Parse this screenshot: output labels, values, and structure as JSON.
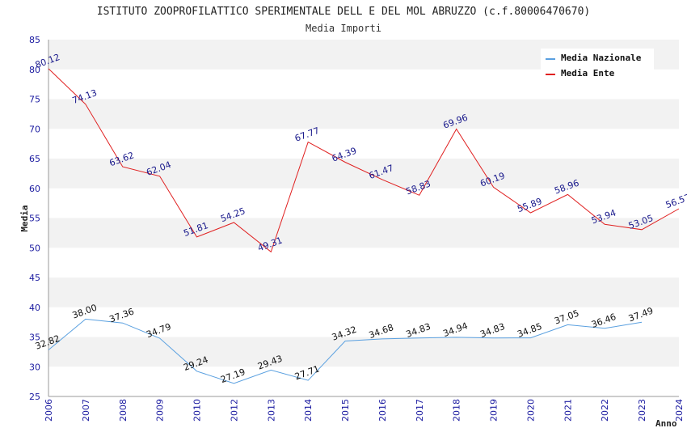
{
  "chart_data": {
    "type": "line",
    "title": "ISTITUTO ZOOPROFILATTICO SPERIMENTALE DELL E DEL MOL ABRUZZO (c.f.80006470670)",
    "subtitle": "Media Importi",
    "xlabel": "Anno",
    "ylabel": "Media",
    "ylim": [
      25,
      85
    ],
    "yticks": [
      "25",
      "30",
      "35",
      "40",
      "45",
      "50",
      "55",
      "60",
      "65",
      "70",
      "75",
      "80",
      "85"
    ],
    "x": [
      "2006",
      "2007",
      "2008",
      "2009",
      "2010",
      "2012",
      "2013",
      "2014",
      "2015",
      "2016",
      "2017",
      "2018",
      "2019",
      "2020",
      "2021",
      "2022",
      "2023",
      "2024"
    ],
    "grid": "horizontal bands",
    "legend_position": "top-right",
    "series": [
      {
        "name": "Media Nazionale",
        "color": "#5aa0e0",
        "label_color": "#111111",
        "values": [
          32.82,
          38.0,
          37.36,
          34.79,
          29.24,
          27.19,
          29.43,
          27.71,
          34.32,
          34.68,
          34.83,
          34.94,
          34.83,
          34.85,
          37.05,
          36.46,
          37.49,
          null
        ],
        "labels": [
          "32.82",
          "38.00",
          "37.36",
          "34.79",
          "29.24",
          "27.19",
          "29.43",
          "27.71",
          "34.32",
          "34.68",
          "34.83",
          "34.94",
          "34.83",
          "34.85",
          "37.05",
          "36.46",
          "37.49",
          ""
        ]
      },
      {
        "name": "Media Ente",
        "color": "#e02020",
        "label_color": "#1a1a8c",
        "values": [
          80.12,
          74.13,
          63.62,
          62.04,
          51.81,
          54.25,
          49.31,
          67.77,
          64.39,
          61.47,
          58.83,
          69.96,
          60.19,
          55.89,
          58.96,
          53.94,
          53.05,
          56.57
        ],
        "labels": [
          "80.12",
          "74.13",
          "63.62",
          "62.04",
          "51.81",
          "54.25",
          "49.31",
          "67.77",
          "64.39",
          "61.47",
          "58.83",
          "69.96",
          "60.19",
          "55.89",
          "58.96",
          "53.94",
          "53.05",
          "56.57"
        ]
      }
    ]
  }
}
